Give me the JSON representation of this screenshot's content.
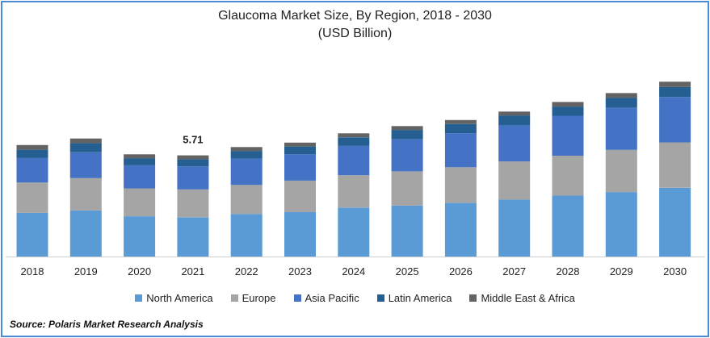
{
  "title": "Glaucoma Market Size, By Region, 2018 - 2030",
  "subtitle": "(USD Billion)",
  "source": "Source: Polaris Market Research Analysis",
  "chart_data": {
    "type": "bar",
    "stacked": true,
    "categories": [
      "2018",
      "2019",
      "2020",
      "2021",
      "2022",
      "2023",
      "2024",
      "2025",
      "2026",
      "2027",
      "2028",
      "2029",
      "2030"
    ],
    "series": [
      {
        "name": "North America",
        "color": "#5b9bd5",
        "values": [
          2.46,
          2.6,
          2.27,
          2.21,
          2.4,
          2.5,
          2.76,
          2.87,
          3.02,
          3.21,
          3.43,
          3.63,
          3.87
        ]
      },
      {
        "name": "Europe",
        "color": "#a5a5a5",
        "values": [
          1.71,
          1.82,
          1.57,
          1.57,
          1.64,
          1.78,
          1.82,
          1.93,
          2.01,
          2.15,
          2.25,
          2.38,
          2.56
        ]
      },
      {
        "name": "Asia Pacific",
        "color": "#4472c4",
        "values": [
          1.38,
          1.45,
          1.3,
          1.3,
          1.48,
          1.49,
          1.66,
          1.81,
          1.92,
          2.03,
          2.25,
          2.38,
          2.56
        ]
      },
      {
        "name": "Latin America",
        "color": "#255e91",
        "values": [
          0.47,
          0.52,
          0.4,
          0.4,
          0.43,
          0.43,
          0.48,
          0.52,
          0.52,
          0.56,
          0.52,
          0.56,
          0.56
        ]
      },
      {
        "name": "Middle East & Africa",
        "color": "#636363",
        "values": [
          0.26,
          0.26,
          0.22,
          0.22,
          0.22,
          0.22,
          0.22,
          0.22,
          0.22,
          0.22,
          0.26,
          0.26,
          0.3
        ]
      }
    ],
    "data_labels": [
      {
        "category": "2021",
        "text": "5.71"
      }
    ],
    "ylim": [
      0,
      10
    ],
    "grid": false,
    "legend": "bottom"
  }
}
